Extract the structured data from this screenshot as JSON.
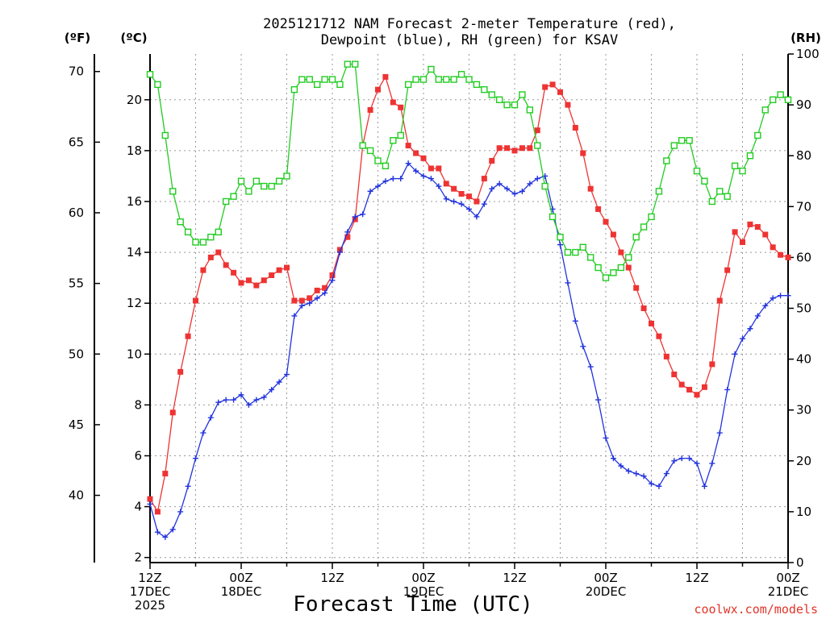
{
  "chart_data": {
    "type": "line",
    "title_line1": "2025121712 NAM Forecast 2-meter Temperature (red),",
    "title_line2": "Dewpoint (blue), RH (green) for KSAV",
    "unit_f": "(ºF)",
    "unit_c": "(ºC)",
    "unit_rh": "(RH)",
    "xlabel": "Forecast Time (UTC)",
    "credit": "coolwx.com/models",
    "x_hours_range": [
      0,
      84
    ],
    "c_range": [
      1.8,
      21.8
    ],
    "rh_range": [
      0,
      100
    ],
    "c_ticks": [
      "2",
      "4",
      "6",
      "8",
      "10",
      "12",
      "14",
      "16",
      "18",
      "20"
    ],
    "f_ticks": [
      "40",
      "45",
      "50",
      "55",
      "60",
      "65",
      "70"
    ],
    "rh_ticks": [
      "0",
      "10",
      "20",
      "30",
      "40",
      "50",
      "60",
      "70",
      "80",
      "90",
      "100"
    ],
    "x_ticks": [
      {
        "label1": "12Z",
        "label2": "17DEC",
        "label3": "2025"
      },
      {
        "label1": "00Z",
        "label2": "18DEC",
        "label3": ""
      },
      {
        "label1": "12Z",
        "label2": "",
        "label3": ""
      },
      {
        "label1": "00Z",
        "label2": "19DEC",
        "label3": ""
      },
      {
        "label1": "12Z",
        "label2": "",
        "label3": ""
      },
      {
        "label1": "00Z",
        "label2": "20DEC",
        "label3": ""
      },
      {
        "label1": "12Z",
        "label2": "",
        "label3": ""
      },
      {
        "label1": "00Z",
        "label2": "21DEC",
        "label3": ""
      }
    ],
    "colors": {
      "temperature": "#ee3333",
      "dewpoint": "#2233dd",
      "rh": "#22cc22"
    },
    "series": [
      {
        "key": "temperature",
        "unit": "C",
        "values": [
          4.3,
          3.8,
          5.3,
          7.7,
          9.3,
          10.7,
          12.1,
          13.3,
          13.8,
          14.0,
          13.5,
          13.2,
          12.8,
          12.9,
          12.7,
          12.9,
          13.1,
          13.3,
          13.4,
          12.1,
          12.1,
          12.2,
          12.5,
          12.6,
          13.1,
          14.1,
          14.6,
          15.3,
          18.2,
          19.6,
          20.4,
          20.9,
          19.9,
          19.7,
          18.2,
          17.9,
          17.7,
          17.3,
          17.3,
          16.7,
          16.5,
          16.3,
          16.2,
          16.0,
          16.9,
          17.6,
          18.1,
          18.1,
          18.0,
          18.1,
          18.1,
          18.8,
          20.5,
          20.6,
          20.3,
          19.8,
          18.9,
          17.9,
          16.5,
          15.7,
          15.2,
          14.7,
          14.0,
          13.4,
          12.6,
          11.8,
          11.2,
          10.7,
          9.9,
          9.2,
          8.8,
          8.6,
          8.4,
          8.7,
          9.6,
          12.1,
          13.3,
          14.8,
          14.4,
          15.1,
          15.0,
          14.7,
          14.2,
          13.9,
          13.8
        ]
      },
      {
        "key": "dewpoint",
        "unit": "C",
        "values": [
          4.1,
          3.0,
          2.8,
          3.1,
          3.8,
          4.8,
          5.9,
          6.9,
          7.5,
          8.1,
          8.2,
          8.2,
          8.4,
          8.0,
          8.2,
          8.3,
          8.6,
          8.9,
          9.2,
          11.5,
          11.9,
          12.0,
          12.2,
          12.4,
          12.9,
          14.0,
          14.8,
          15.4,
          15.5,
          16.4,
          16.6,
          16.8,
          16.9,
          16.9,
          17.5,
          17.2,
          17.0,
          16.9,
          16.6,
          16.1,
          16.0,
          15.9,
          15.7,
          15.4,
          15.9,
          16.5,
          16.7,
          16.5,
          16.3,
          16.4,
          16.7,
          16.9,
          17.0,
          15.7,
          14.3,
          12.8,
          11.3,
          10.3,
          9.5,
          8.2,
          6.7,
          5.9,
          5.6,
          5.4,
          5.3,
          5.2,
          4.9,
          4.8,
          5.3,
          5.8,
          5.9,
          5.9,
          5.7,
          4.8,
          5.7,
          6.9,
          8.6,
          10.0,
          10.6,
          11.0,
          11.5,
          11.9,
          12.2,
          12.3,
          12.3
        ]
      },
      {
        "key": "rh",
        "unit": "%",
        "values": [
          96,
          94,
          84,
          73,
          67,
          65,
          63,
          63,
          64,
          65,
          71,
          72,
          75,
          73,
          75,
          74,
          74,
          75,
          76,
          93,
          95,
          95,
          94,
          95,
          95,
          94,
          98,
          98,
          82,
          81,
          79,
          78,
          83,
          84,
          94,
          95,
          95,
          97,
          95,
          95,
          95,
          96,
          95,
          94,
          93,
          92,
          91,
          90,
          90,
          92,
          89,
          82,
          74,
          68,
          64,
          61,
          61,
          62,
          60,
          58,
          56,
          57,
          58,
          60,
          64,
          66,
          68,
          73,
          79,
          82,
          83,
          83,
          77,
          75,
          71,
          73,
          72,
          78,
          77,
          80,
          84,
          89,
          91,
          92,
          91
        ]
      }
    ]
  }
}
